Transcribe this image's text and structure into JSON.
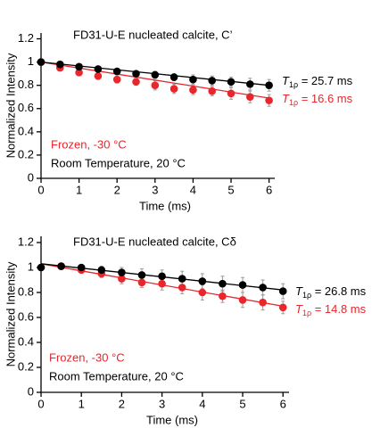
{
  "chart_data": [
    {
      "type": "scatter",
      "title": "FD31-U-E nucleated calcite, C’",
      "x_label": "Time (ms)",
      "y_label": "Normalized Intensity",
      "x": [
        0,
        0.5,
        1,
        1.5,
        2,
        2.5,
        3,
        3.5,
        4,
        4.5,
        5,
        5.5,
        6
      ],
      "xlim": [
        0,
        6.15
      ],
      "xticks": [
        0,
        1,
        2,
        3,
        4,
        5,
        6
      ],
      "ylim": [
        0,
        1.25
      ],
      "yticks": [
        0,
        0.2,
        0.4,
        0.6,
        0.8,
        1,
        1.2
      ],
      "series": [
        {
          "name": "Frozen, -30 °C",
          "color": "#e8262b",
          "values": [
            1.0,
            0.95,
            0.91,
            0.88,
            0.85,
            0.83,
            0.8,
            0.77,
            0.76,
            0.75,
            0.73,
            0.7,
            0.67
          ],
          "errors": [
            0,
            0.01,
            0.02,
            0.03,
            0.03,
            0.03,
            0.04,
            0.04,
            0.04,
            0.04,
            0.05,
            0.05,
            0.05
          ],
          "fit": {
            "x": [
              0,
              6
            ],
            "values": [
              1.0,
              0.69
            ]
          }
        },
        {
          "name": "Room Temperature, 20 °C",
          "color": "#000000",
          "values": [
            1.0,
            0.98,
            0.96,
            0.94,
            0.92,
            0.9,
            0.89,
            0.87,
            0.85,
            0.84,
            0.83,
            0.81,
            0.8
          ],
          "errors": [
            0,
            0.01,
            0.01,
            0.02,
            0.02,
            0.02,
            0.03,
            0.03,
            0.04,
            0.04,
            0.04,
            0.05,
            0.05
          ],
          "fit": {
            "x": [
              0,
              6
            ],
            "values": [
              1.0,
              0.8
            ]
          }
        }
      ],
      "annotations": [
        {
          "symbol": "T",
          "subscript": "1ρ",
          "text": " = 25.7 ms",
          "color": "#000000"
        },
        {
          "symbol": "T",
          "subscript": "1ρ",
          "text": " = 16.6 ms",
          "color": "#e8262b"
        }
      ]
    },
    {
      "type": "scatter",
      "title": "FD31-U-E nucleated calcite, Cδ",
      "x_label": "Time (ms)",
      "y_label": "Normalized Intensity",
      "x": [
        0,
        0.5,
        1,
        1.5,
        2,
        2.5,
        3,
        3.5,
        4,
        4.5,
        5,
        5.5,
        6
      ],
      "xlim": [
        0,
        6.15
      ],
      "xticks": [
        0,
        1,
        2,
        3,
        4,
        5,
        6
      ],
      "ylim": [
        0,
        1.25
      ],
      "yticks": [
        0,
        0.2,
        0.4,
        0.6,
        0.8,
        1,
        1.2
      ],
      "series": [
        {
          "name": "Frozen, -30 °C",
          "color": "#e8262b",
          "values": [
            1.0,
            1.01,
            0.98,
            0.95,
            0.91,
            0.88,
            0.87,
            0.84,
            0.8,
            0.77,
            0.74,
            0.72,
            0.68
          ],
          "errors": [
            0,
            0.01,
            0.02,
            0.03,
            0.04,
            0.04,
            0.05,
            0.05,
            0.06,
            0.05,
            0.06,
            0.06,
            0.05
          ],
          "fit": {
            "x": [
              0,
              6
            ],
            "values": [
              1.03,
              0.69
            ]
          }
        },
        {
          "name": "Room Temperature, 20 °C",
          "color": "#000000",
          "values": [
            1.0,
            1.01,
            1.0,
            0.98,
            0.96,
            0.94,
            0.93,
            0.91,
            0.89,
            0.87,
            0.86,
            0.84,
            0.81
          ],
          "errors": [
            0,
            0.01,
            0.02,
            0.03,
            0.04,
            0.05,
            0.05,
            0.06,
            0.06,
            0.06,
            0.06,
            0.06,
            0.06
          ],
          "fit": {
            "x": [
              0,
              6
            ],
            "values": [
              1.03,
              0.82
            ]
          }
        }
      ],
      "annotations": [
        {
          "symbol": "T",
          "subscript": "1ρ",
          "text": " = 26.8 ms",
          "color": "#000000"
        },
        {
          "symbol": "T",
          "subscript": "1ρ",
          "text": " = 14.8 ms",
          "color": "#e8262b"
        }
      ]
    }
  ]
}
